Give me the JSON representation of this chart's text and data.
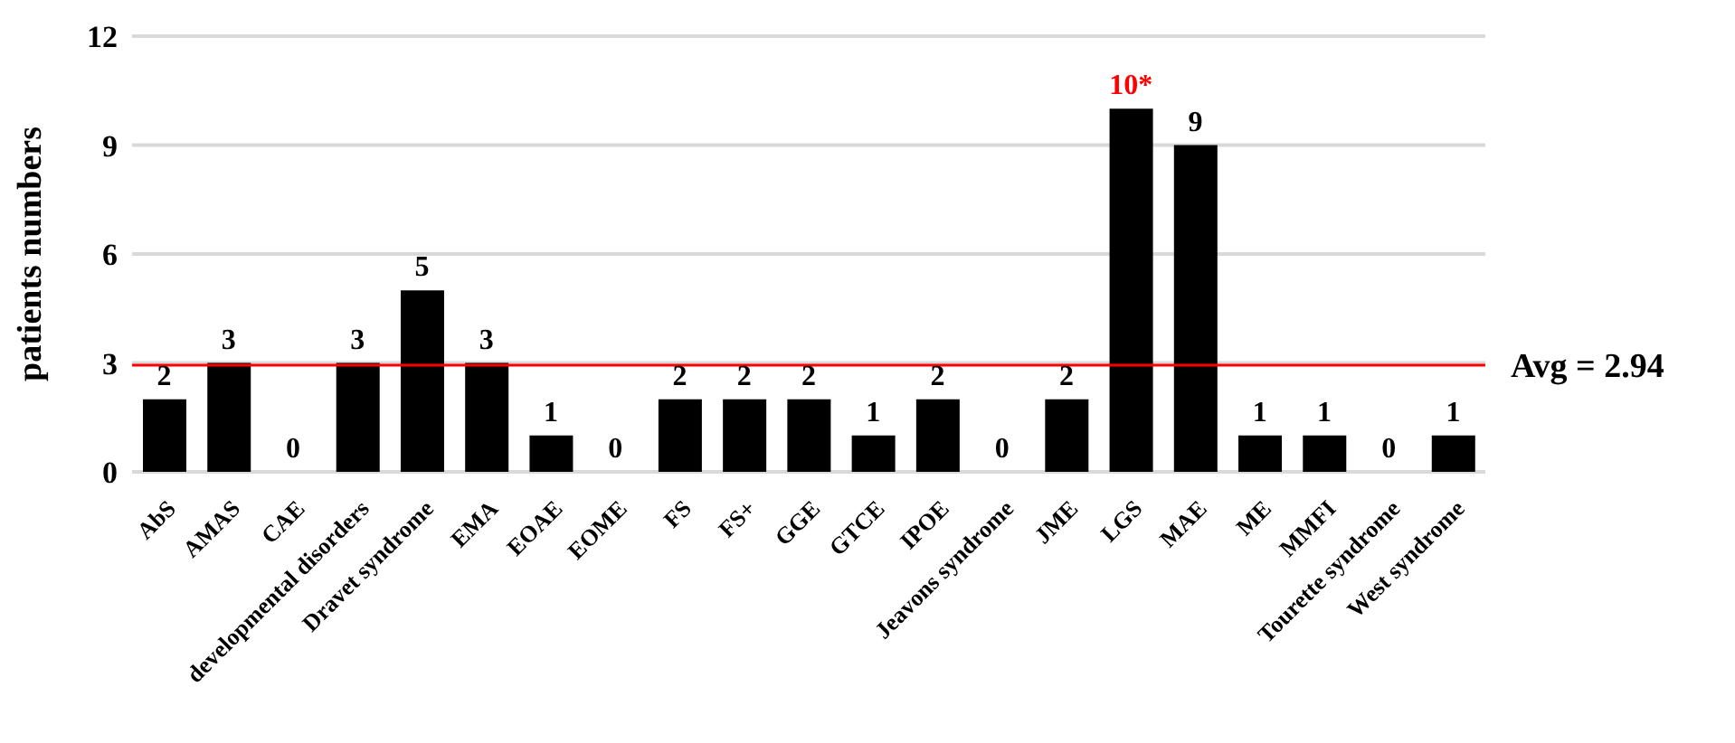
{
  "chart_data": {
    "type": "bar",
    "ylabel": "patients numbers",
    "categories": [
      "AbS",
      "AMAS",
      "CAE",
      "developmental disorders",
      "Dravet syndrome",
      "EMA",
      "EOAE",
      "EOME",
      "FS",
      "FS+",
      "GGE",
      "GTCE",
      "IPOE",
      "Jeavons syndrome",
      "JME",
      "LGS",
      "MAE",
      "ME",
      "MMFI",
      "Tourette syndrome",
      "West syndrome"
    ],
    "values": [
      2,
      3,
      0,
      3,
      5,
      3,
      1,
      0,
      2,
      2,
      2,
      1,
      2,
      0,
      2,
      10,
      9,
      1,
      1,
      0,
      1
    ],
    "color": "#000000",
    "value_labels": [
      "2",
      "3",
      "0",
      "3",
      "5",
      "3",
      "1",
      "0",
      "2",
      "2",
      "2",
      "1",
      "2",
      "0",
      "2",
      null,
      "9",
      "1",
      "1",
      "0",
      "1"
    ],
    "annotations": [
      {
        "text": "10*",
        "x": "LGS",
        "y": 10
      }
    ],
    "ref_lines": [
      {
        "axis": "y",
        "value": 2.94,
        "label": "Avg = 2.94",
        "color": "#ff0000"
      }
    ],
    "ylim": [
      0,
      12
    ],
    "yticks": [
      0,
      3,
      6,
      9,
      12
    ],
    "grid": "y"
  }
}
